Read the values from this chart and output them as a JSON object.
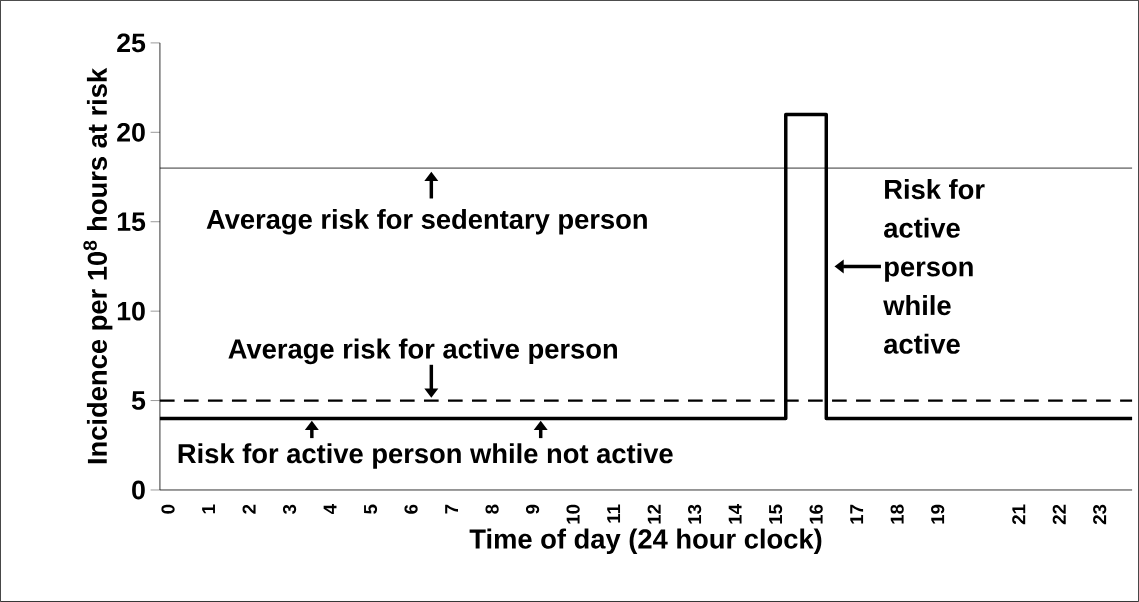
{
  "chart_data": {
    "type": "line",
    "xlabel": "Time of day (24 hour clock)",
    "ylabel": "Incidence per 10$^{8}$ hours at risk",
    "xlim": [
      -0.2,
      23.8
    ],
    "ylim": [
      0,
      25
    ],
    "xticks": [
      0,
      1,
      2,
      3,
      4,
      5,
      6,
      7,
      8,
      9,
      10,
      11,
      12,
      13,
      14,
      15,
      16,
      17,
      18,
      19,
      21,
      22,
      23
    ],
    "yticks": [
      0,
      5,
      10,
      15,
      20,
      25
    ],
    "marker": "none",
    "series": [
      {
        "color": "#000000",
        "line_style": "solid",
        "x": [
          -0.2,
          15.25,
          15.25,
          16.25,
          16.25,
          23.8
        ],
        "values": [
          4,
          4,
          21,
          21,
          4,
          4
        ]
      }
    ],
    "ref_lines": [
      {
        "axis": "y",
        "value": 18,
        "color": "#000000",
        "line_style": "solid"
      },
      {
        "axis": "y",
        "value": 5,
        "color": "#000000",
        "line_style": "dashed"
      }
    ],
    "annotations": [
      {
        "text": "Average risk for sedentary person",
        "x": 6.5,
        "y": 18
      },
      {
        "text": "Average risk for active person",
        "x": 6.5,
        "y": 5
      },
      {
        "text": "Risk for active person while not active",
        "x": 6.35,
        "y": 4
      },
      {
        "text": "Risk for active person while active",
        "x": 16.25,
        "y": 12.5
      }
    ]
  }
}
